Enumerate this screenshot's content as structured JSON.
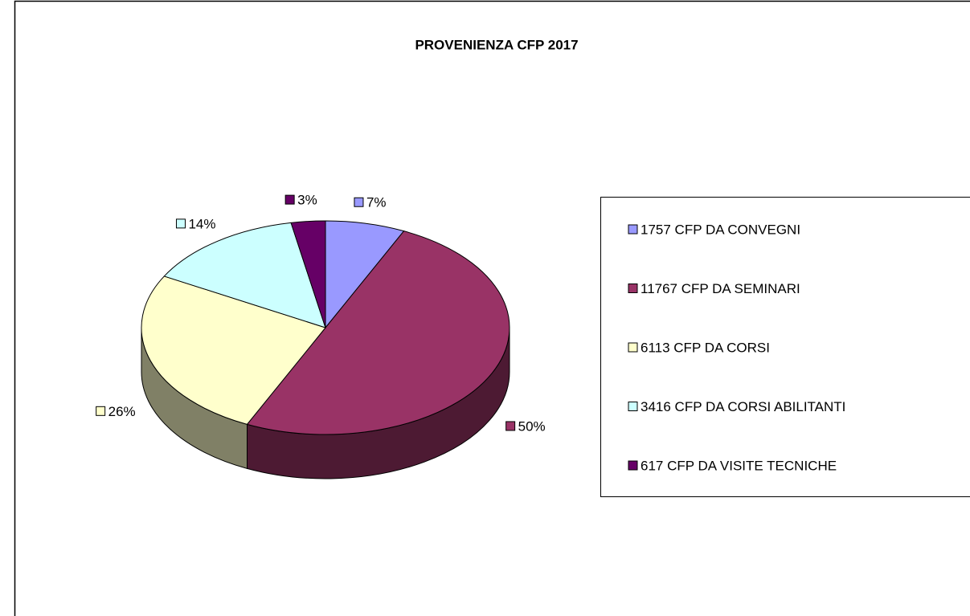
{
  "chart_data": {
    "type": "pie",
    "title": "PROVENIENZA CFP 2017",
    "categories": [
      "1757 CFP DA CONVEGNI",
      "11767 CFP DA SEMINARI",
      "6113 CFP DA CORSI",
      "3416 CFP DA CORSI ABILITANTI",
      "617 CFP DA VISITE TECNICHE"
    ],
    "values": [
      7,
      50,
      26,
      14,
      3
    ],
    "value_labels": [
      "7%",
      "50%",
      "26%",
      "14%",
      "3%"
    ],
    "colors": [
      "#9999ff",
      "#993366",
      "#ffffcc",
      "#ccffff",
      "#660066"
    ],
    "legend": "right"
  }
}
